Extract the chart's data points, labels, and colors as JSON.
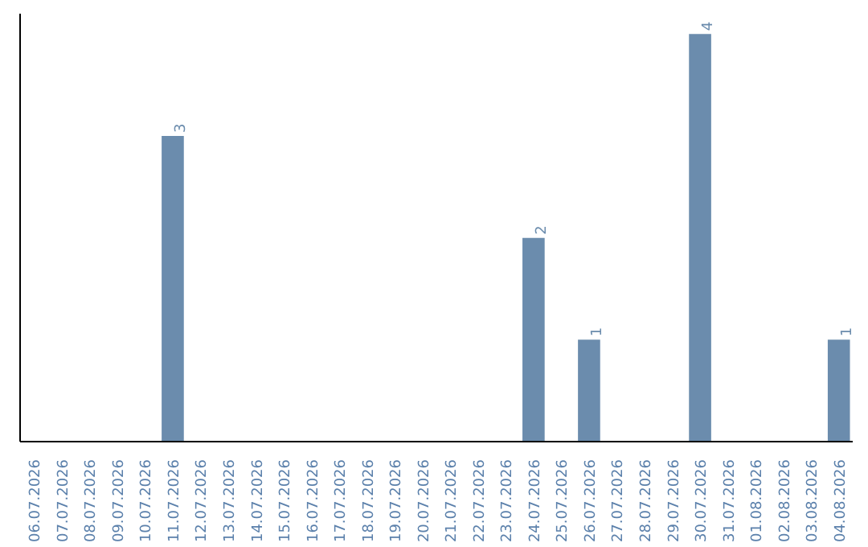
{
  "chart_data": {
    "type": "bar",
    "categories": [
      "06.07.2026",
      "07.07.2026",
      "08.07.2026",
      "09.07.2026",
      "10.07.2026",
      "11.07.2026",
      "12.07.2026",
      "13.07.2026",
      "14.07.2026",
      "15.07.2026",
      "16.07.2026",
      "17.07.2026",
      "18.07.2026",
      "19.07.2026",
      "20.07.2026",
      "21.07.2026",
      "22.07.2026",
      "23.07.2026",
      "24.07.2026",
      "25.07.2026",
      "26.07.2026",
      "27.07.2026",
      "28.07.2026",
      "29.07.2026",
      "30.07.2026",
      "31.07.2026",
      "01.08.2026",
      "02.08.2026",
      "03.08.2026",
      "04.08.2026"
    ],
    "values": [
      0,
      0,
      0,
      0,
      0,
      3,
      0,
      0,
      0,
      0,
      0,
      0,
      0,
      0,
      0,
      0,
      0,
      0,
      2,
      0,
      1,
      0,
      0,
      0,
      4,
      0,
      0,
      0,
      0,
      1
    ],
    "value_labels": [
      null,
      null,
      null,
      null,
      null,
      "3",
      null,
      null,
      null,
      null,
      null,
      null,
      null,
      null,
      null,
      null,
      null,
      null,
      "2",
      null,
      "1",
      null,
      null,
      null,
      "4",
      null,
      null,
      null,
      null,
      "1"
    ],
    "color": "#6b8cad",
    "grid": false
  }
}
